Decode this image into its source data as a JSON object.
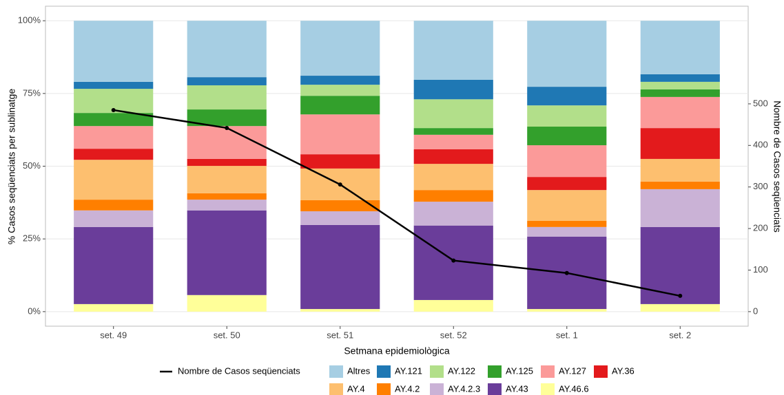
{
  "chart_data": {
    "type": "bar",
    "stacked": true,
    "x_label": "Setmana epidemiològica",
    "y_label": "% Casos seqüenciats per sublinatge",
    "y2_label": "Nombre de Casos seqüenciats",
    "categories": [
      "set. 49",
      "set. 50",
      "set. 51",
      "set. 52",
      "set. 1",
      "set. 2"
    ],
    "ylim": [
      -5,
      105
    ],
    "yticks": [
      {
        "value": 0,
        "label": "0%"
      },
      {
        "value": 25,
        "label": "25%"
      },
      {
        "value": 50,
        "label": "50%"
      },
      {
        "value": 75,
        "label": "75%"
      },
      {
        "value": 100,
        "label": "100%"
      }
    ],
    "y2lim": [
      -35,
      735
    ],
    "y2ticks": [
      0,
      100,
      200,
      300,
      400,
      500
    ],
    "grid": true,
    "series": [
      {
        "name": "Nombre de Casos seqüenciats",
        "type": "line",
        "axis": "y2",
        "color": "#000000",
        "values": [
          485,
          442,
          306,
          123,
          93,
          38
        ]
      },
      {
        "name": "Altres",
        "color": "#a6cee3",
        "values": [
          21.0,
          19.4,
          18.9,
          20.3,
          22.7,
          18.4
        ]
      },
      {
        "name": "AY.121",
        "color": "#1f78b4",
        "values": [
          2.4,
          2.8,
          3.1,
          6.7,
          6.4,
          2.6
        ]
      },
      {
        "name": "AY.122",
        "color": "#b2df8a",
        "values": [
          8.3,
          8.3,
          3.8,
          9.9,
          7.3,
          2.6
        ]
      },
      {
        "name": "AY.125",
        "color": "#33a02c",
        "values": [
          4.5,
          5.7,
          6.4,
          2.3,
          6.4,
          2.6
        ]
      },
      {
        "name": "AY.127",
        "color": "#fb9a99",
        "values": [
          7.8,
          11.3,
          13.7,
          5.0,
          10.9,
          10.7
        ]
      },
      {
        "name": "AY.36",
        "color": "#e31a1c",
        "values": [
          3.8,
          2.4,
          4.9,
          5.0,
          4.5,
          10.6
        ]
      },
      {
        "name": "AY.4",
        "color": "#fdbf6f",
        "values": [
          13.7,
          9.4,
          10.9,
          9.0,
          10.6,
          7.8
        ]
      },
      {
        "name": "AY.4.2",
        "color": "#ff7f00",
        "values": [
          3.7,
          2.2,
          3.8,
          4.0,
          2.1,
          2.6
        ]
      },
      {
        "name": "AY.4.2.3",
        "color": "#cab2d6",
        "values": [
          5.7,
          3.7,
          4.7,
          8.2,
          3.3,
          13.0
        ]
      },
      {
        "name": "AY.43",
        "color": "#6a3d9a",
        "values": [
          26.5,
          29.1,
          28.9,
          25.6,
          24.9,
          26.5
        ]
      },
      {
        "name": "AY.46.6",
        "color": "#ffff99",
        "values": [
          2.6,
          5.7,
          0.9,
          4.0,
          0.9,
          2.6
        ]
      }
    ]
  }
}
